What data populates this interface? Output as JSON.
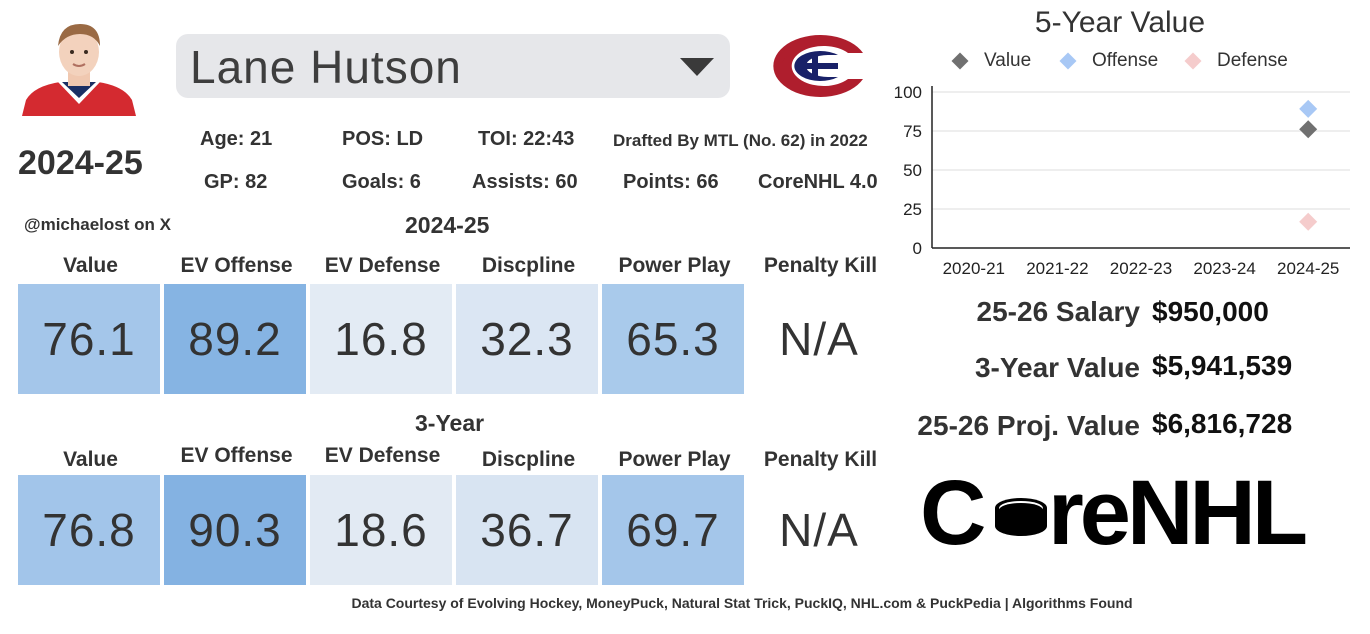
{
  "player": {
    "name": "Lane Hutson",
    "season": "2024-25",
    "stats_row1": {
      "age": "Age: 21",
      "pos": "POS: LD",
      "toi": "TOI: 22:43",
      "drafted": "Drafted By MTL (No. 62) in 2022"
    },
    "stats_row2": {
      "gp": "GP: 82",
      "goals": "Goals: 6",
      "assists": "Assists: 60",
      "points": "Points: 66",
      "version": "CoreNHL 4.0"
    },
    "handle": "@michaelost on X"
  },
  "columns": [
    "Value",
    "EV Offense",
    "EV Defense",
    "Discpline",
    "Power Play",
    "Penalty Kill"
  ],
  "season_section": {
    "title": "2024-25",
    "values": [
      "76.1",
      "89.2",
      "16.8",
      "32.3",
      "65.3",
      "N/A"
    ]
  },
  "three_year_section": {
    "title": "3-Year",
    "values": [
      "76.8",
      "90.3",
      "18.6",
      "36.7",
      "69.7",
      "N/A"
    ]
  },
  "cell_colors": {
    "season": [
      "#a4c6ea",
      "#86b4e3",
      "#e3ebf4",
      "#dbe6f3",
      "#a9caeb",
      "#ffffff"
    ],
    "three_year": [
      "#a2c5ea",
      "#84b2e2",
      "#e2eaf3",
      "#d8e4f2",
      "#a4c6ea",
      "#ffffff"
    ]
  },
  "chart_data": {
    "type": "scatter",
    "title": "5-Year Value",
    "categories": [
      "2020-21",
      "2021-22",
      "2022-23",
      "2023-24",
      "2024-25"
    ],
    "ylim": [
      0,
      100
    ],
    "yticks": [
      0,
      25,
      50,
      75,
      100
    ],
    "grid": true,
    "legend_position": "top",
    "series": [
      {
        "name": "Value",
        "color": "#707070",
        "values": [
          null,
          null,
          null,
          null,
          76.1
        ]
      },
      {
        "name": "Offense",
        "color": "#a8c8f5",
        "values": [
          null,
          null,
          null,
          null,
          89.2
        ]
      },
      {
        "name": "Defense",
        "color": "#f5cccc",
        "values": [
          null,
          null,
          null,
          null,
          16.8
        ]
      }
    ]
  },
  "contract": [
    {
      "label": "25-26 Salary",
      "value": "$950,000"
    },
    {
      "label": "3-Year Value",
      "value": "$5,941,539"
    },
    {
      "label": "25-26 Proj. Value",
      "value": "$6,816,728"
    }
  ],
  "brand": {
    "prefix": "C",
    "suffix": "reNHL"
  },
  "footer": "Data Courtesy of Evolving Hockey, MoneyPuck, Natural Stat Trick, PuckIQ, NHL.com & PuckPedia | Algorithms Found"
}
